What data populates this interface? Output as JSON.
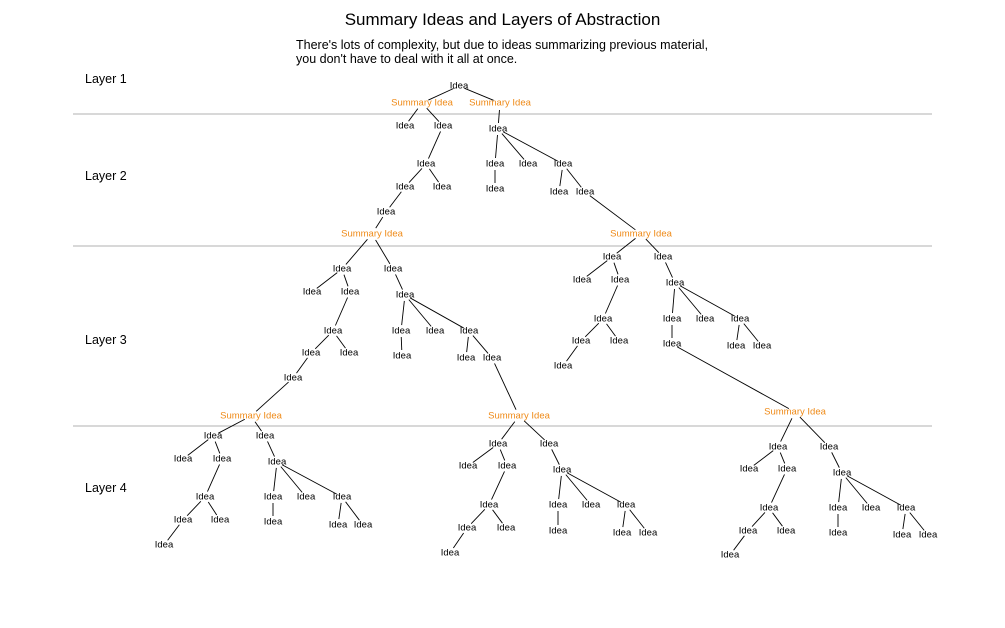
{
  "title": "Summary Ideas and Layers of Abstraction",
  "subtitle": [
    "There's lots of complexity, but due to ideas summarizing previous material,",
    "you don't have to deal with it all at once."
  ],
  "layers": [
    "Layer 1",
    "Layer 2",
    "Layer 3",
    "Layer 4"
  ],
  "node_labels": {
    "idea": "Idea",
    "summary": "Summary Idea"
  },
  "colors": {
    "summary": "#ef8a17",
    "idea": "#000000",
    "divider": "#b0b0b0",
    "edge": "#000000"
  }
}
